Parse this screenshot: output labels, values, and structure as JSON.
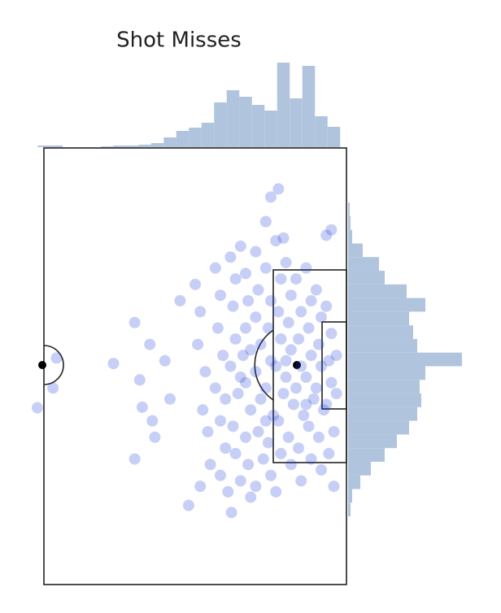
{
  "chart_data": [
    {
      "type": "scatter",
      "title": "Shot Misses",
      "color": "#1f3fdc",
      "xlim": [
        0,
        60
      ],
      "ylim": [
        0,
        80
      ],
      "x": [
        -1.3,
        1.8,
        2.5,
        13.8,
        18,
        18,
        19,
        19.5,
        21,
        21.5,
        22,
        24,
        25,
        27,
        28.7,
        37.2,
        45,
        46.5,
        44,
        47.5,
        56,
        57,
        30,
        31,
        30.5,
        32,
        31.5,
        32.5,
        33,
        31,
        34,
        35,
        34.5,
        35.5,
        34,
        35,
        36,
        35,
        36.5,
        37,
        38,
        37.5,
        38,
        37,
        38.5,
        37.5,
        38,
        39,
        39,
        40,
        40.5,
        40,
        39.5,
        40,
        41,
        40,
        40.5,
        41,
        42,
        42.5,
        42,
        43,
        42,
        43,
        42.5,
        43.5,
        42,
        44,
        45,
        44.5,
        45,
        44,
        45.5,
        44.5,
        45,
        46,
        47,
        46.5,
        47,
        46,
        47.5,
        46.5,
        47,
        46,
        48,
        49,
        48.5,
        49,
        48,
        49.5,
        48.5,
        49,
        50,
        51,
        50.5,
        51,
        50,
        51.5,
        50.5,
        51,
        52,
        53,
        52.5,
        53,
        52,
        53.5,
        52.5,
        53,
        54,
        55,
        54.5,
        55,
        54,
        55.5,
        54.5,
        55,
        56,
        57,
        56.5,
        57,
        56,
        57.5,
        56.5,
        58,
        58,
        57.5,
        36,
        41,
        48,
        52,
        44,
        39
      ],
      "y": [
        47.6,
        44,
        38.5,
        39.5,
        32,
        57,
        42.5,
        47.5,
        36,
        50,
        53,
        39,
        46,
        28,
        65.5,
        66.8,
        9,
        7.5,
        13.5,
        16.5,
        16,
        15,
        25,
        30,
        36,
        41,
        48,
        52,
        58,
        62,
        22,
        27,
        33,
        38,
        44,
        50,
        55,
        60,
        63,
        20,
        24,
        29,
        35,
        40,
        45,
        51,
        56,
        61,
        18,
        23,
        28,
        33,
        38,
        43,
        48,
        53,
        58,
        64,
        19,
        26,
        31,
        36,
        41,
        46,
        52,
        57,
        62,
        22,
        28,
        33,
        39,
        44,
        49,
        54,
        60,
        17,
        24,
        30,
        35,
        40,
        45,
        50,
        56,
        63,
        21,
        27,
        32,
        37,
        42,
        47,
        53,
        58,
        24,
        30,
        35,
        40,
        44,
        49,
        55,
        61,
        22,
        28,
        33,
        38,
        42,
        46,
        51,
        57,
        26,
        31,
        36,
        40,
        44,
        48,
        53,
        59,
        29,
        34,
        39,
        43,
        47,
        52,
        56,
        38,
        45,
        62,
        46,
        37,
        39,
        47,
        50,
        42
      ]
    },
    {
      "type": "histogram",
      "orientation": "vertical",
      "color": "#b0c4de",
      "bins": [
        -1.25,
        1.25,
        3.75,
        6.25,
        8.75,
        11.25,
        13.75,
        16.25,
        18.75,
        21.25,
        23.75,
        26.25,
        28.75,
        31.25,
        33.75,
        36.25,
        38.75,
        41.25,
        43.75,
        46.25,
        48.75,
        51.25,
        53.75,
        56.25,
        58.75
      ],
      "counts": [
        2,
        2,
        0,
        0,
        0,
        1,
        2,
        2,
        3,
        5,
        12,
        20,
        24,
        30,
        55,
        70,
        62,
        52,
        45,
        104,
        60,
        100,
        38,
        25
      ]
    },
    {
      "type": "histogram",
      "orientation": "horizontal",
      "color": "#b0c4de",
      "bins": [
        10,
        12.5,
        15,
        17.5,
        20,
        22.5,
        25,
        27.5,
        30,
        32.5,
        35,
        37.5,
        40,
        42.5,
        45,
        47.5,
        50,
        52.5,
        55,
        57.5,
        60,
        62.5,
        65,
        67.5
      ],
      "counts": [
        2,
        3,
        5,
        18,
        38,
        45,
        72,
        95,
        75,
        80,
        85,
        140,
        95,
        88,
        90,
        85,
        75,
        60,
        45,
        28,
        15,
        5,
        3
      ]
    }
  ]
}
